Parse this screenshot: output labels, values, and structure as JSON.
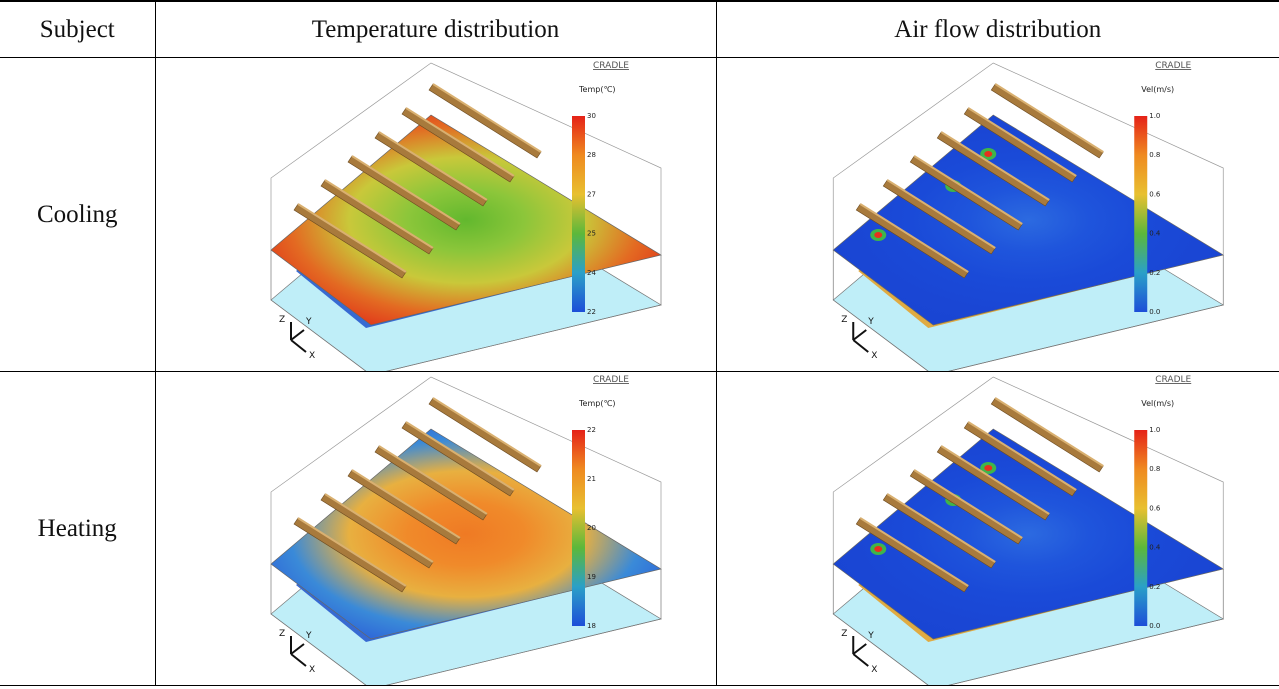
{
  "table": {
    "header": [
      "Subject",
      "Temperature distribution",
      "Air flow distribution"
    ],
    "rows": [
      {
        "subject": "Cooling",
        "temperature": {
          "brand": "CRADLE",
          "legend_title": "Temp(℃)",
          "legend_labels": [
            "30",
            "28",
            "27",
            "25",
            "24",
            "22"
          ],
          "axes": [
            "Z",
            "Y",
            "X"
          ]
        },
        "air_flow": {
          "brand": "CRADLE",
          "legend_title": "Vel(m/s)",
          "legend_labels": [
            "1.0",
            "0.8",
            "0.6",
            "0.4",
            "0.2",
            "0.0"
          ],
          "axes": [
            "Z",
            "Y",
            "X"
          ]
        }
      },
      {
        "subject": "Heating",
        "temperature": {
          "brand": "CRADLE",
          "legend_title": "Temp(℃)",
          "legend_labels": [
            "22",
            "21",
            "20",
            "19",
            "18"
          ],
          "axes": [
            "Z",
            "Y",
            "X"
          ]
        },
        "air_flow": {
          "brand": "CRADLE",
          "legend_title": "Vel(m/s)",
          "legend_labels": [
            "1.0",
            "0.8",
            "0.6",
            "0.4",
            "0.2",
            "0.0"
          ],
          "axes": [
            "Z",
            "Y",
            "X"
          ]
        }
      }
    ]
  }
}
